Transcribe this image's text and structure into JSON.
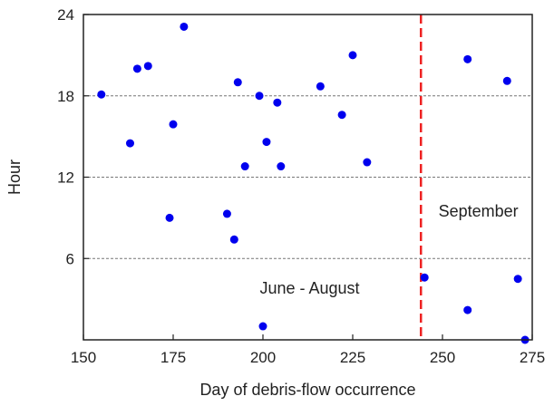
{
  "chart_data": {
    "type": "scatter",
    "xlabel": "Day of debris-flow occurrence",
    "ylabel": "Hour",
    "xlim": [
      150,
      275
    ],
    "ylim": [
      0,
      24
    ],
    "xticks": [
      150,
      175,
      200,
      225,
      250,
      275
    ],
    "yticks": [
      6,
      12,
      18,
      24
    ],
    "grid_y": [
      6,
      12,
      18
    ],
    "point_color": "#0000ee",
    "points": [
      {
        "x": 155,
        "y": 18.1
      },
      {
        "x": 163,
        "y": 14.5
      },
      {
        "x": 165,
        "y": 20.0
      },
      {
        "x": 168,
        "y": 20.2
      },
      {
        "x": 174,
        "y": 9.0
      },
      {
        "x": 175,
        "y": 15.9
      },
      {
        "x": 178,
        "y": 23.1
      },
      {
        "x": 190,
        "y": 9.3
      },
      {
        "x": 192,
        "y": 7.4
      },
      {
        "x": 193,
        "y": 19.0
      },
      {
        "x": 195,
        "y": 12.8
      },
      {
        "x": 199,
        "y": 18.0
      },
      {
        "x": 200,
        "y": 1.0
      },
      {
        "x": 201,
        "y": 14.6
      },
      {
        "x": 204,
        "y": 17.5
      },
      {
        "x": 205,
        "y": 12.8
      },
      {
        "x": 216,
        "y": 18.7
      },
      {
        "x": 222,
        "y": 16.6
      },
      {
        "x": 225,
        "y": 21.0
      },
      {
        "x": 229,
        "y": 13.1
      },
      {
        "x": 245,
        "y": 4.6
      },
      {
        "x": 257,
        "y": 20.7
      },
      {
        "x": 257,
        "y": 2.2
      },
      {
        "x": 268,
        "y": 19.1
      },
      {
        "x": 271,
        "y": 4.5
      },
      {
        "x": 273,
        "y": 0.0
      }
    ],
    "reference_line": {
      "x": 244,
      "color": "#ee2222",
      "style": "dashed"
    },
    "annotations": [
      {
        "text": "June - August",
        "x": 213,
        "y": 3.4
      },
      {
        "text": "September",
        "x": 260,
        "y": 9.1
      }
    ]
  }
}
